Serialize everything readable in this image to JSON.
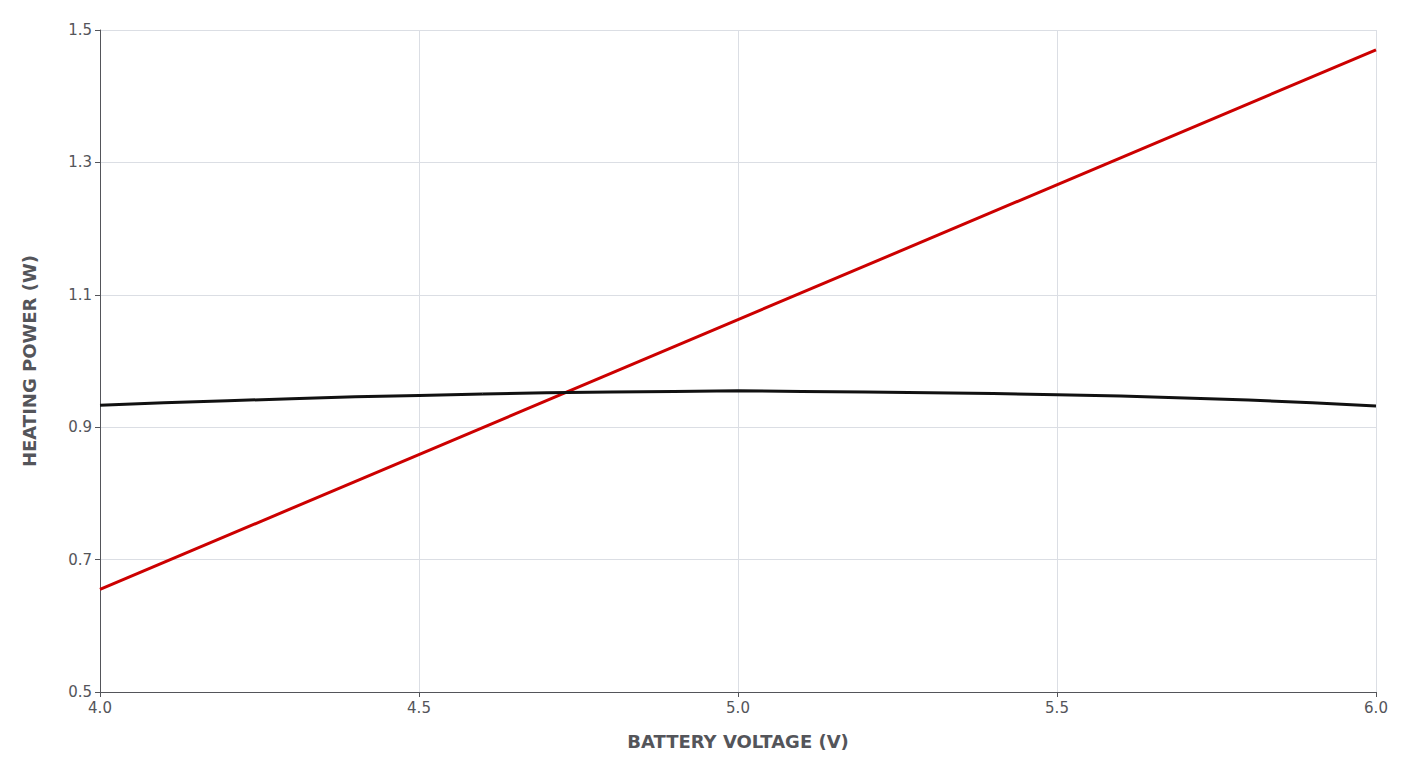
{
  "chart_data": {
    "type": "line",
    "xlabel": "BATTERY VOLTAGE (V)",
    "ylabel": "HEATING POWER (W)",
    "xlim": [
      4.0,
      6.0
    ],
    "ylim": [
      0.5,
      1.5
    ],
    "xticks": [
      {
        "value": 4.0,
        "label": "4.0"
      },
      4.5,
      {
        "value": 5.0,
        "label": "5.0"
      },
      5.5,
      {
        "value": 6.0,
        "label": "6.0"
      }
    ],
    "yticks": [
      0.5,
      0.7,
      0.9,
      1.1,
      1.3,
      1.5
    ],
    "grid": true,
    "series": [
      {
        "color": "#cc0000",
        "x": [
          4.0,
          6.0
        ],
        "values": [
          0.655,
          1.47
        ]
      },
      {
        "color": "#111111",
        "x": [
          4.0,
          4.1,
          4.2,
          4.3,
          4.4,
          4.5,
          4.6,
          4.7,
          4.8,
          4.9,
          5.0,
          5.1,
          5.2,
          5.3,
          5.4,
          5.5,
          5.6,
          5.7,
          5.8,
          5.9,
          6.0
        ],
        "values": [
          0.933,
          0.937,
          0.94,
          0.943,
          0.946,
          0.948,
          0.95,
          0.952,
          0.953,
          0.954,
          0.955,
          0.954,
          0.953,
          0.952,
          0.951,
          0.949,
          0.947,
          0.944,
          0.941,
          0.937,
          0.932
        ]
      }
    ]
  }
}
